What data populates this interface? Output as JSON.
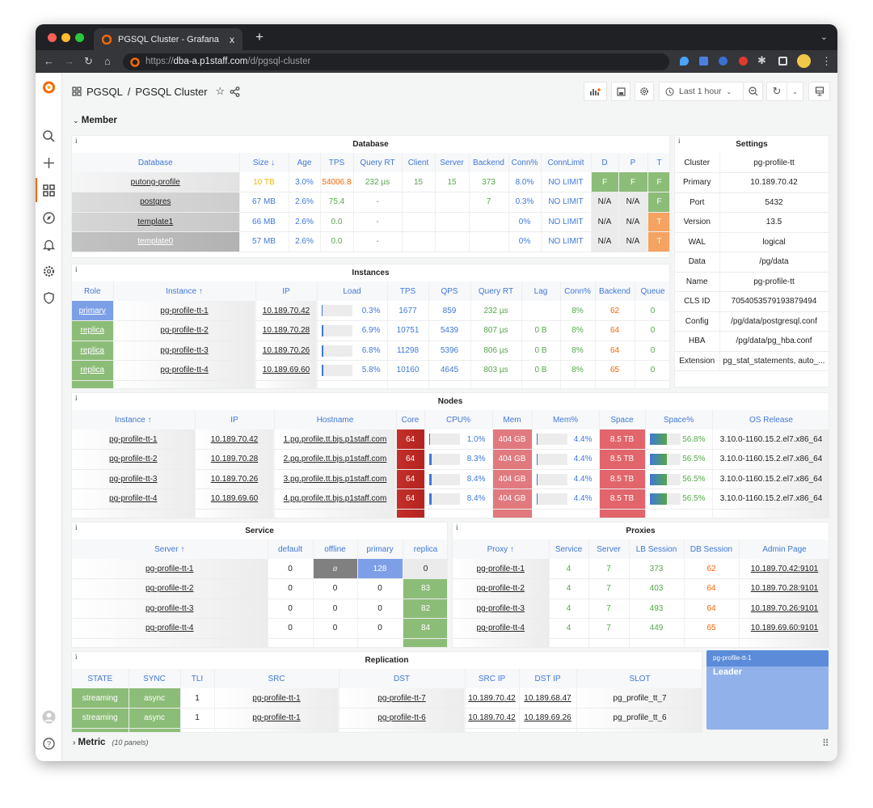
{
  "browser": {
    "tab_title": "PGSQL Cluster - Grafana",
    "url_prefix": "https://",
    "url_host": "dba-a.p1staff.com",
    "url_path": "/d/pgsql-cluster",
    "close": "x",
    "new_tab": "+"
  },
  "header": {
    "folder": "PGSQL",
    "separator": "/",
    "title": "PGSQL Cluster",
    "time_range": "Last 1 hour"
  },
  "rows": {
    "member": "Member",
    "metric": "Metric",
    "metric_count": "(10 panels)"
  },
  "colors": {
    "accent": "#3f78d8",
    "ok": "#56a64b",
    "warn": "#fa6400",
    "green_bg": "#8cbd78",
    "orange_bg": "#f6a361",
    "red_bg": "#c4302b"
  },
  "panels": {
    "database": {
      "title": "Database",
      "headers": [
        "Database",
        "Size ↓",
        "Age",
        "TPS",
        "Query RT",
        "Client",
        "Server",
        "Backend",
        "Conn%",
        "ConnLimit",
        "D",
        "P",
        "T"
      ],
      "rows": [
        [
          "putong-profile",
          "10 TB",
          "3.0%",
          "54006.8",
          "232 µs",
          "15",
          "15",
          "373",
          "8.0%",
          "NO LIMIT",
          "F",
          "F",
          "F"
        ],
        [
          "postgres",
          "67 MB",
          "2.6%",
          "75.4",
          "-",
          "",
          "",
          "7",
          "0.3%",
          "NO LIMIT",
          "N/A",
          "N/A",
          "F"
        ],
        [
          "template1",
          "66 MB",
          "2.6%",
          "0.0",
          "-",
          "",
          "",
          "",
          "0%",
          "NO LIMIT",
          "N/A",
          "N/A",
          "T"
        ],
        [
          "template0",
          "57 MB",
          "2.6%",
          "0.0",
          "-",
          "",
          "",
          "",
          "0%",
          "NO LIMIT",
          "N/A",
          "N/A",
          "T"
        ]
      ]
    },
    "settings": {
      "title": "Settings",
      "rows": [
        [
          "Cluster",
          "pg-profile-tt"
        ],
        [
          "Primary",
          "10.189.70.42"
        ],
        [
          "Port",
          "5432"
        ],
        [
          "Version",
          "13.5"
        ],
        [
          "WAL",
          "logical"
        ],
        [
          "Data",
          "/pg/data"
        ],
        [
          "Name",
          "pg-profile-tt"
        ],
        [
          "CLS ID",
          "7054053579193879494"
        ],
        [
          "Config",
          "/pg/data/postgresql.conf"
        ],
        [
          "HBA",
          "/pg/data/pg_hba.conf"
        ],
        [
          "Extension",
          "pg_stat_statements, auto_..."
        ]
      ]
    },
    "instances": {
      "title": "Instances",
      "headers": [
        "Role",
        "Instance ↑",
        "IP",
        "Load",
        "TPS",
        "QPS",
        "Query RT",
        "Lag",
        "Conn%",
        "Backend",
        "Queue"
      ],
      "rows": [
        [
          "primary",
          "pg-profile-tt-1",
          "10.189.70.42",
          "0.3%",
          "1677",
          "859",
          "232 µs",
          "",
          "8%",
          "62",
          "0"
        ],
        [
          "replica",
          "pg-profile-tt-2",
          "10.189.70.28",
          "6.9%",
          "10751",
          "5439",
          "807 µs",
          "0 B",
          "8%",
          "64",
          "0"
        ],
        [
          "replica",
          "pg-profile-tt-3",
          "10.189.70.26",
          "6.8%",
          "11298",
          "5396",
          "806 µs",
          "0 B",
          "8%",
          "64",
          "0"
        ],
        [
          "replica",
          "pg-profile-tt-4",
          "10.189.69.60",
          "5.8%",
          "10160",
          "4645",
          "803 µs",
          "0 B",
          "8%",
          "65",
          "0"
        ]
      ]
    },
    "nodes": {
      "title": "Nodes",
      "headers": [
        "Instance ↑",
        "IP",
        "Hostname",
        "Core",
        "CPU%",
        "Mem",
        "Mem%",
        "Space",
        "Space%",
        "OS Release"
      ],
      "rows": [
        [
          "pg-profile-tt-1",
          "10.189.70.42",
          "1.pg.profile.tt.bjs.p1staff.com",
          "64",
          "1.0%",
          "404 GB",
          "4.4%",
          "8.5 TB",
          "56.8%",
          "3.10.0-1160.15.2.el7.x86_64"
        ],
        [
          "pg-profile-tt-2",
          "10.189.70.28",
          "2.pg.profile.tt.bjs.p1staff.com",
          "64",
          "8.3%",
          "404 GB",
          "4.4%",
          "8.5 TB",
          "56.5%",
          "3.10.0-1160.15.2.el7.x86_64"
        ],
        [
          "pg-profile-tt-3",
          "10.189.70.26",
          "3.pg.profile.tt.bjs.p1staff.com",
          "64",
          "8.4%",
          "404 GB",
          "4.4%",
          "8.5 TB",
          "56.5%",
          "3.10.0-1160.15.2.el7.x86_64"
        ],
        [
          "pg-profile-tt-4",
          "10.189.69.60",
          "4.pg.profile.tt.bjs.p1staff.com",
          "64",
          "8.4%",
          "404 GB",
          "4.4%",
          "8.5 TB",
          "56.5%",
          "3.10.0-1160.15.2.el7.x86_64"
        ]
      ]
    },
    "service": {
      "title": "Service",
      "headers": [
        "Server ↑",
        "default",
        "offline",
        "primary",
        "replica"
      ],
      "rows": [
        [
          "pg-profile-tt-1",
          "0",
          "ø",
          "128",
          "0"
        ],
        [
          "pg-profile-tt-2",
          "0",
          "0",
          "0",
          "83"
        ],
        [
          "pg-profile-tt-3",
          "0",
          "0",
          "0",
          "82"
        ],
        [
          "pg-profile-tt-4",
          "0",
          "0",
          "0",
          "84"
        ]
      ]
    },
    "proxies": {
      "title": "Proxies",
      "headers": [
        "Proxy ↑",
        "Service",
        "Server",
        "LB Session",
        "DB Session",
        "Admin Page"
      ],
      "rows": [
        [
          "pg-profile-tt-1",
          "4",
          "7",
          "373",
          "62",
          "10.189.70.42:9101"
        ],
        [
          "pg-profile-tt-2",
          "4",
          "7",
          "403",
          "64",
          "10.189.70.28:9101"
        ],
        [
          "pg-profile-tt-3",
          "4",
          "7",
          "493",
          "64",
          "10.189.70.26:9101"
        ],
        [
          "pg-profile-tt-4",
          "4",
          "7",
          "449",
          "65",
          "10.189.69.60:9101"
        ]
      ]
    },
    "replication": {
      "title": "Replication",
      "headers": [
        "STATE",
        "SYNC",
        "TLI",
        "SRC",
        "DST",
        "SRC IP",
        "DST IP",
        "SLOT"
      ],
      "rows": [
        [
          "streaming",
          "async",
          "1",
          "pg-profile-tt-1",
          "pg-profile-tt-7",
          "10.189.70.42",
          "10.189.68.47",
          "pg_profile_tt_7"
        ],
        [
          "streaming",
          "async",
          "1",
          "pg-profile-tt-1",
          "pg-profile-tt-6",
          "10.189.70.42",
          "10.189.69.26",
          "pg_profile_tt_6"
        ]
      ]
    },
    "leader": {
      "instance": "pg-profile-tt-1",
      "label": "Leader"
    }
  }
}
